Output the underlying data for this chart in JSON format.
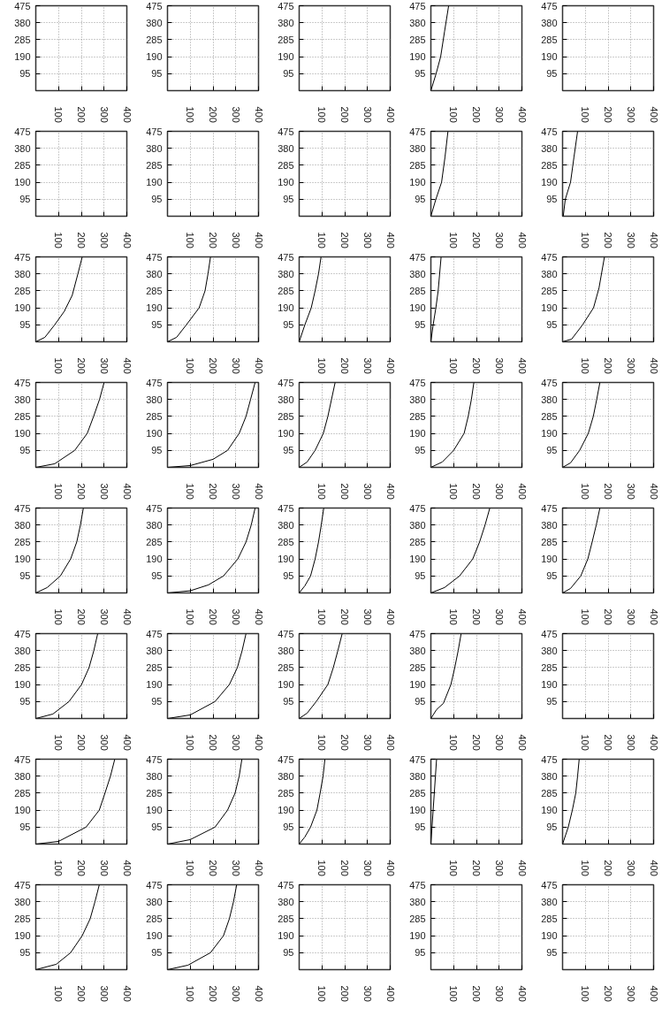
{
  "chart_data": [
    {
      "type": "line",
      "xlim": [
        0,
        400
      ],
      "ylim": [
        0,
        475
      ],
      "xticks": [
        100,
        200,
        300,
        400
      ],
      "yticks": [
        95,
        190,
        285,
        380,
        475
      ],
      "grid": true
    },
    {
      "type": "line",
      "xlim": [
        0,
        400
      ],
      "ylim": [
        0,
        475
      ],
      "xticks": [
        100,
        200,
        300,
        400
      ],
      "yticks": [
        95,
        190,
        285,
        380,
        475
      ],
      "grid": true
    },
    {
      "type": "line",
      "xlim": [
        0,
        400
      ],
      "ylim": [
        0,
        475
      ],
      "xticks": [
        100,
        200,
        300,
        400
      ],
      "yticks": [
        95,
        190,
        285,
        380,
        475
      ],
      "grid": true
    },
    {
      "type": "line",
      "xlim": [
        0,
        400
      ],
      "ylim": [
        0,
        475
      ],
      "xticks": [
        100,
        200,
        300,
        400
      ],
      "yticks": [
        95,
        190,
        285,
        380,
        475
      ],
      "grid": true,
      "series": [
        {
          "color": "#000000",
          "x": [
            0,
            23,
            43,
            60,
            78
          ],
          "values": [
            0,
            95,
            190,
            330,
            475
          ]
        }
      ]
    },
    {
      "type": "line",
      "xlim": [
        0,
        400
      ],
      "ylim": [
        0,
        475
      ],
      "xticks": [
        100,
        200,
        300,
        400
      ],
      "yticks": [
        95,
        190,
        285,
        380,
        475
      ],
      "grid": true
    },
    {
      "type": "line",
      "xlim": [
        0,
        400
      ],
      "ylim": [
        0,
        475
      ],
      "xticks": [
        100,
        200,
        300,
        400
      ],
      "yticks": [
        95,
        190,
        285,
        380,
        475
      ],
      "grid": true
    },
    {
      "type": "line",
      "xlim": [
        0,
        400
      ],
      "ylim": [
        0,
        475
      ],
      "xticks": [
        100,
        200,
        300,
        400
      ],
      "yticks": [
        95,
        190,
        285,
        380,
        475
      ],
      "grid": true
    },
    {
      "type": "line",
      "xlim": [
        0,
        400
      ],
      "ylim": [
        0,
        475
      ],
      "xticks": [
        100,
        200,
        300,
        400
      ],
      "yticks": [
        95,
        190,
        285,
        380,
        475
      ],
      "grid": true
    },
    {
      "type": "line",
      "xlim": [
        0,
        400
      ],
      "ylim": [
        0,
        475
      ],
      "xticks": [
        100,
        200,
        300,
        400
      ],
      "yticks": [
        95,
        190,
        285,
        380,
        475
      ],
      "grid": true,
      "series": [
        {
          "color": "#000000",
          "x": [
            0,
            22,
            47,
            62,
            75
          ],
          "values": [
            0,
            95,
            190,
            330,
            475
          ]
        }
      ]
    },
    {
      "type": "line",
      "xlim": [
        0,
        400
      ],
      "ylim": [
        0,
        475
      ],
      "xticks": [
        100,
        200,
        300,
        400
      ],
      "yticks": [
        95,
        190,
        285,
        380,
        475
      ],
      "grid": true,
      "series": [
        {
          "color": "#000000",
          "x": [
            3,
            12,
            35,
            50,
            66
          ],
          "values": [
            0,
            95,
            190,
            330,
            475
          ]
        }
      ]
    },
    {
      "type": "line",
      "xlim": [
        0,
        400
      ],
      "ylim": [
        0,
        475
      ],
      "xticks": [
        100,
        200,
        300,
        400
      ],
      "yticks": [
        95,
        190,
        285,
        380,
        475
      ],
      "grid": true,
      "series": [
        {
          "color": "#000000",
          "x": [
            0,
            40,
            83,
            125,
            160,
            185,
            204
          ],
          "values": [
            0,
            25,
            95,
            170,
            260,
            380,
            475
          ]
        }
      ]
    },
    {
      "type": "line",
      "xlim": [
        0,
        400
      ],
      "ylim": [
        0,
        475
      ],
      "xticks": [
        100,
        200,
        300,
        400
      ],
      "yticks": [
        95,
        190,
        285,
        380,
        475
      ],
      "grid": true,
      "series": [
        {
          "color": "#000000",
          "x": [
            0,
            40,
            83,
            139,
            165,
            178,
            189
          ],
          "values": [
            0,
            25,
            95,
            190,
            285,
            380,
            475
          ]
        }
      ]
    },
    {
      "type": "line",
      "xlim": [
        0,
        400
      ],
      "ylim": [
        0,
        475
      ],
      "xticks": [
        100,
        200,
        300,
        400
      ],
      "yticks": [
        95,
        190,
        285,
        380,
        475
      ],
      "grid": true,
      "series": [
        {
          "color": "#000000",
          "x": [
            0,
            25,
            53,
            70,
            85,
            96
          ],
          "values": [
            0,
            95,
            190,
            285,
            380,
            475
          ]
        }
      ]
    },
    {
      "type": "line",
      "xlim": [
        0,
        400
      ],
      "ylim": [
        0,
        475
      ],
      "xticks": [
        100,
        200,
        300,
        400
      ],
      "yticks": [
        95,
        190,
        285,
        380,
        475
      ],
      "grid": true,
      "series": [
        {
          "color": "#000000",
          "x": [
            0,
            10,
            22,
            32,
            45
          ],
          "values": [
            0,
            95,
            190,
            285,
            475
          ]
        }
      ]
    },
    {
      "type": "line",
      "xlim": [
        0,
        400
      ],
      "ylim": [
        0,
        475
      ],
      "xticks": [
        100,
        200,
        300,
        400
      ],
      "yticks": [
        95,
        190,
        285,
        380,
        475
      ],
      "grid": true,
      "series": [
        {
          "color": "#000000",
          "x": [
            0,
            40,
            88,
            136,
            160,
            184
          ],
          "values": [
            0,
            15,
            95,
            190,
            300,
            475
          ]
        }
      ]
    },
    {
      "type": "line",
      "xlim": [
        0,
        400
      ],
      "ylim": [
        0,
        475
      ],
      "xticks": [
        100,
        200,
        300,
        400
      ],
      "yticks": [
        95,
        190,
        285,
        380,
        475
      ],
      "grid": true,
      "series": [
        {
          "color": "#000000",
          "x": [
            0,
            83,
            171,
            226,
            254,
            280,
            300
          ],
          "values": [
            0,
            20,
            95,
            190,
            285,
            380,
            475
          ]
        }
      ]
    },
    {
      "type": "line",
      "xlim": [
        0,
        400
      ],
      "ylim": [
        0,
        475
      ],
      "xticks": [
        100,
        200,
        300,
        400
      ],
      "yticks": [
        95,
        190,
        285,
        380,
        475
      ],
      "grid": true,
      "series": [
        {
          "color": "#000000",
          "x": [
            0,
            100,
            200,
            264,
            315,
            345,
            365,
            385
          ],
          "values": [
            0,
            10,
            45,
            95,
            190,
            285,
            380,
            475
          ]
        }
      ]
    },
    {
      "type": "line",
      "xlim": [
        0,
        400
      ],
      "ylim": [
        0,
        475
      ],
      "xticks": [
        100,
        200,
        300,
        400
      ],
      "yticks": [
        95,
        190,
        285,
        380,
        475
      ],
      "grid": true,
      "series": [
        {
          "color": "#000000",
          "x": [
            0,
            35,
            70,
            106,
            126,
            142,
            158
          ],
          "values": [
            0,
            30,
            95,
            190,
            285,
            380,
            475
          ]
        }
      ]
    },
    {
      "type": "line",
      "xlim": [
        0,
        400
      ],
      "ylim": [
        0,
        475
      ],
      "xticks": [
        100,
        200,
        300,
        400
      ],
      "yticks": [
        95,
        190,
        285,
        380,
        475
      ],
      "grid": true,
      "series": [
        {
          "color": "#000000",
          "x": [
            0,
            50,
            100,
            146,
            164,
            178,
            189
          ],
          "values": [
            0,
            30,
            95,
            190,
            285,
            380,
            475
          ]
        }
      ]
    },
    {
      "type": "line",
      "xlim": [
        0,
        400
      ],
      "ylim": [
        0,
        475
      ],
      "xticks": [
        100,
        200,
        300,
        400
      ],
      "yticks": [
        95,
        190,
        285,
        380,
        475
      ],
      "grid": true,
      "series": [
        {
          "color": "#000000",
          "x": [
            0,
            35,
            75,
            113,
            135,
            150,
            164
          ],
          "values": [
            0,
            25,
            95,
            190,
            285,
            380,
            475
          ]
        }
      ]
    },
    {
      "type": "line",
      "xlim": [
        0,
        400
      ],
      "ylim": [
        0,
        475
      ],
      "xticks": [
        100,
        200,
        300,
        400
      ],
      "yticks": [
        95,
        190,
        285,
        380,
        475
      ],
      "grid": true,
      "series": [
        {
          "color": "#000000",
          "x": [
            0,
            50,
            108,
            153,
            180,
            196,
            209
          ],
          "values": [
            0,
            30,
            95,
            190,
            285,
            380,
            475
          ]
        }
      ]
    },
    {
      "type": "line",
      "xlim": [
        0,
        400
      ],
      "ylim": [
        0,
        475
      ],
      "xticks": [
        100,
        200,
        300,
        400
      ],
      "yticks": [
        95,
        190,
        285,
        380,
        475
      ],
      "grid": true,
      "series": [
        {
          "color": "#000000",
          "x": [
            0,
            100,
            180,
            246,
            309,
            345,
            368,
            385
          ],
          "values": [
            0,
            12,
            45,
            95,
            190,
            285,
            380,
            475
          ]
        }
      ]
    },
    {
      "type": "line",
      "xlim": [
        0,
        400
      ],
      "ylim": [
        0,
        475
      ],
      "xticks": [
        100,
        200,
        300,
        400
      ],
      "yticks": [
        95,
        190,
        285,
        380,
        475
      ],
      "grid": true,
      "series": [
        {
          "color": "#000000",
          "x": [
            0,
            25,
            50,
            70,
            85,
            97,
            108
          ],
          "values": [
            0,
            40,
            95,
            190,
            285,
            380,
            475
          ]
        }
      ]
    },
    {
      "type": "line",
      "xlim": [
        0,
        400
      ],
      "ylim": [
        0,
        475
      ],
      "xticks": [
        100,
        200,
        300,
        400
      ],
      "yticks": [
        95,
        190,
        285,
        380,
        475
      ],
      "grid": true,
      "series": [
        {
          "color": "#000000",
          "x": [
            0,
            60,
            126,
            184,
            214,
            238,
            259
          ],
          "values": [
            0,
            30,
            95,
            190,
            285,
            380,
            475
          ]
        }
      ]
    },
    {
      "type": "line",
      "xlim": [
        0,
        400
      ],
      "ylim": [
        0,
        475
      ],
      "xticks": [
        100,
        200,
        300,
        400
      ],
      "yticks": [
        95,
        190,
        285,
        380,
        475
      ],
      "grid": true,
      "series": [
        {
          "color": "#000000",
          "x": [
            0,
            35,
            80,
            111,
            130,
            148,
            164
          ],
          "values": [
            0,
            25,
            95,
            190,
            285,
            380,
            475
          ]
        }
      ]
    },
    {
      "type": "line",
      "xlim": [
        0,
        400
      ],
      "ylim": [
        0,
        475
      ],
      "xticks": [
        100,
        200,
        300,
        400
      ],
      "yticks": [
        95,
        190,
        285,
        380,
        475
      ],
      "grid": true,
      "series": [
        {
          "color": "#000000",
          "x": [
            0,
            75,
            146,
            201,
            234,
            255,
            272
          ],
          "values": [
            0,
            25,
            95,
            190,
            285,
            380,
            475
          ]
        }
      ]
    },
    {
      "type": "line",
      "xlim": [
        0,
        400
      ],
      "ylim": [
        0,
        475
      ],
      "xticks": [
        100,
        200,
        300,
        400
      ],
      "yticks": [
        95,
        190,
        285,
        380,
        475
      ],
      "grid": true,
      "series": [
        {
          "color": "#000000",
          "x": [
            0,
            100,
            209,
            272,
            307,
            328,
            345
          ],
          "values": [
            0,
            20,
            95,
            190,
            285,
            380,
            475
          ]
        }
      ]
    },
    {
      "type": "line",
      "xlim": [
        0,
        400
      ],
      "ylim": [
        0,
        475
      ],
      "xticks": [
        100,
        200,
        300,
        400
      ],
      "yticks": [
        95,
        190,
        285,
        380,
        475
      ],
      "grid": true,
      "series": [
        {
          "color": "#000000",
          "x": [
            0,
            35,
            75,
            126,
            150,
            170,
            189
          ],
          "values": [
            0,
            30,
            95,
            190,
            285,
            380,
            475
          ]
        }
      ]
    },
    {
      "type": "line",
      "xlim": [
        0,
        400
      ],
      "ylim": [
        0,
        475
      ],
      "xticks": [
        100,
        200,
        300,
        400
      ],
      "yticks": [
        95,
        190,
        285,
        380,
        475
      ],
      "grid": true,
      "series": [
        {
          "color": "#000000",
          "x": [
            0,
            25,
            55,
            88,
            105,
            120,
            133
          ],
          "values": [
            0,
            50,
            85,
            190,
            285,
            380,
            475
          ]
        }
      ]
    },
    {
      "type": "line",
      "xlim": [
        0,
        400
      ],
      "ylim": [
        0,
        475
      ],
      "xticks": [
        100,
        200,
        300,
        400
      ],
      "yticks": [
        95,
        190,
        285,
        380,
        475
      ],
      "grid": true
    },
    {
      "type": "line",
      "xlim": [
        0,
        400
      ],
      "ylim": [
        0,
        475
      ],
      "xticks": [
        100,
        200,
        300,
        400
      ],
      "yticks": [
        95,
        190,
        285,
        380,
        475
      ],
      "grid": true,
      "series": [
        {
          "color": "#000000",
          "x": [
            0,
            100,
            221,
            279,
            304,
            328,
            347
          ],
          "values": [
            0,
            15,
            95,
            190,
            285,
            380,
            475
          ]
        }
      ]
    },
    {
      "type": "line",
      "xlim": [
        0,
        400
      ],
      "ylim": [
        0,
        475
      ],
      "xticks": [
        100,
        200,
        300,
        400
      ],
      "yticks": [
        95,
        190,
        285,
        380,
        475
      ],
      "grid": true,
      "series": [
        {
          "color": "#000000",
          "x": [
            0,
            100,
            209,
            264,
            297,
            315,
            327
          ],
          "values": [
            0,
            25,
            95,
            190,
            285,
            380,
            475
          ]
        }
      ]
    },
    {
      "type": "line",
      "xlim": [
        0,
        400
      ],
      "ylim": [
        0,
        475
      ],
      "xticks": [
        100,
        200,
        300,
        400
      ],
      "yticks": [
        95,
        190,
        285,
        380,
        475
      ],
      "grid": true,
      "series": [
        {
          "color": "#000000",
          "x": [
            0,
            25,
            50,
            78,
            92,
            105,
            113
          ],
          "values": [
            0,
            40,
            95,
            190,
            285,
            380,
            475
          ]
        }
      ]
    },
    {
      "type": "line",
      "xlim": [
        0,
        400
      ],
      "ylim": [
        0,
        475
      ],
      "xticks": [
        100,
        200,
        300,
        400
      ],
      "yticks": [
        95,
        190,
        285,
        380,
        475
      ],
      "grid": true,
      "series": [
        {
          "color": "#000000",
          "x": [
            0,
            5,
            10,
            15,
            20,
            25
          ],
          "values": [
            0,
            95,
            190,
            285,
            380,
            475
          ]
        }
      ]
    },
    {
      "type": "line",
      "xlim": [
        0,
        400
      ],
      "ylim": [
        0,
        475
      ],
      "xticks": [
        100,
        200,
        300,
        400
      ],
      "yticks": [
        95,
        190,
        285,
        380,
        475
      ],
      "grid": true,
      "series": [
        {
          "color": "#000000",
          "x": [
            0,
            25,
            43,
            58,
            66,
            73
          ],
          "values": [
            0,
            95,
            190,
            285,
            380,
            475
          ]
        }
      ]
    },
    {
      "type": "line",
      "xlim": [
        0,
        400
      ],
      "ylim": [
        0,
        475
      ],
      "xticks": [
        100,
        200,
        300,
        400
      ],
      "yticks": [
        95,
        190,
        285,
        380,
        475
      ],
      "grid": true,
      "series": [
        {
          "color": "#000000",
          "x": [
            0,
            90,
            153,
            204,
            239,
            260,
            279
          ],
          "values": [
            0,
            30,
            95,
            190,
            285,
            380,
            475
          ]
        }
      ]
    },
    {
      "type": "line",
      "xlim": [
        0,
        400
      ],
      "ylim": [
        0,
        475
      ],
      "xticks": [
        100,
        200,
        300,
        400
      ],
      "yticks": [
        95,
        190,
        285,
        380,
        475
      ],
      "grid": true,
      "series": [
        {
          "color": "#000000",
          "x": [
            0,
            90,
            189,
            246,
            272,
            290,
            304
          ],
          "values": [
            0,
            25,
            95,
            190,
            285,
            380,
            475
          ]
        }
      ]
    },
    {
      "type": "line",
      "xlim": [
        0,
        400
      ],
      "ylim": [
        0,
        475
      ],
      "xticks": [
        100,
        200,
        300,
        400
      ],
      "yticks": [
        95,
        190,
        285,
        380,
        475
      ],
      "grid": true
    },
    {
      "type": "line",
      "xlim": [
        0,
        400
      ],
      "ylim": [
        0,
        475
      ],
      "xticks": [
        100,
        200,
        300,
        400
      ],
      "yticks": [
        95,
        190,
        285,
        380,
        475
      ],
      "grid": true
    },
    {
      "type": "line",
      "xlim": [
        0,
        400
      ],
      "ylim": [
        0,
        475
      ],
      "xticks": [
        100,
        200,
        300,
        400
      ],
      "yticks": [
        95,
        190,
        285,
        380,
        475
      ],
      "grid": true
    }
  ]
}
